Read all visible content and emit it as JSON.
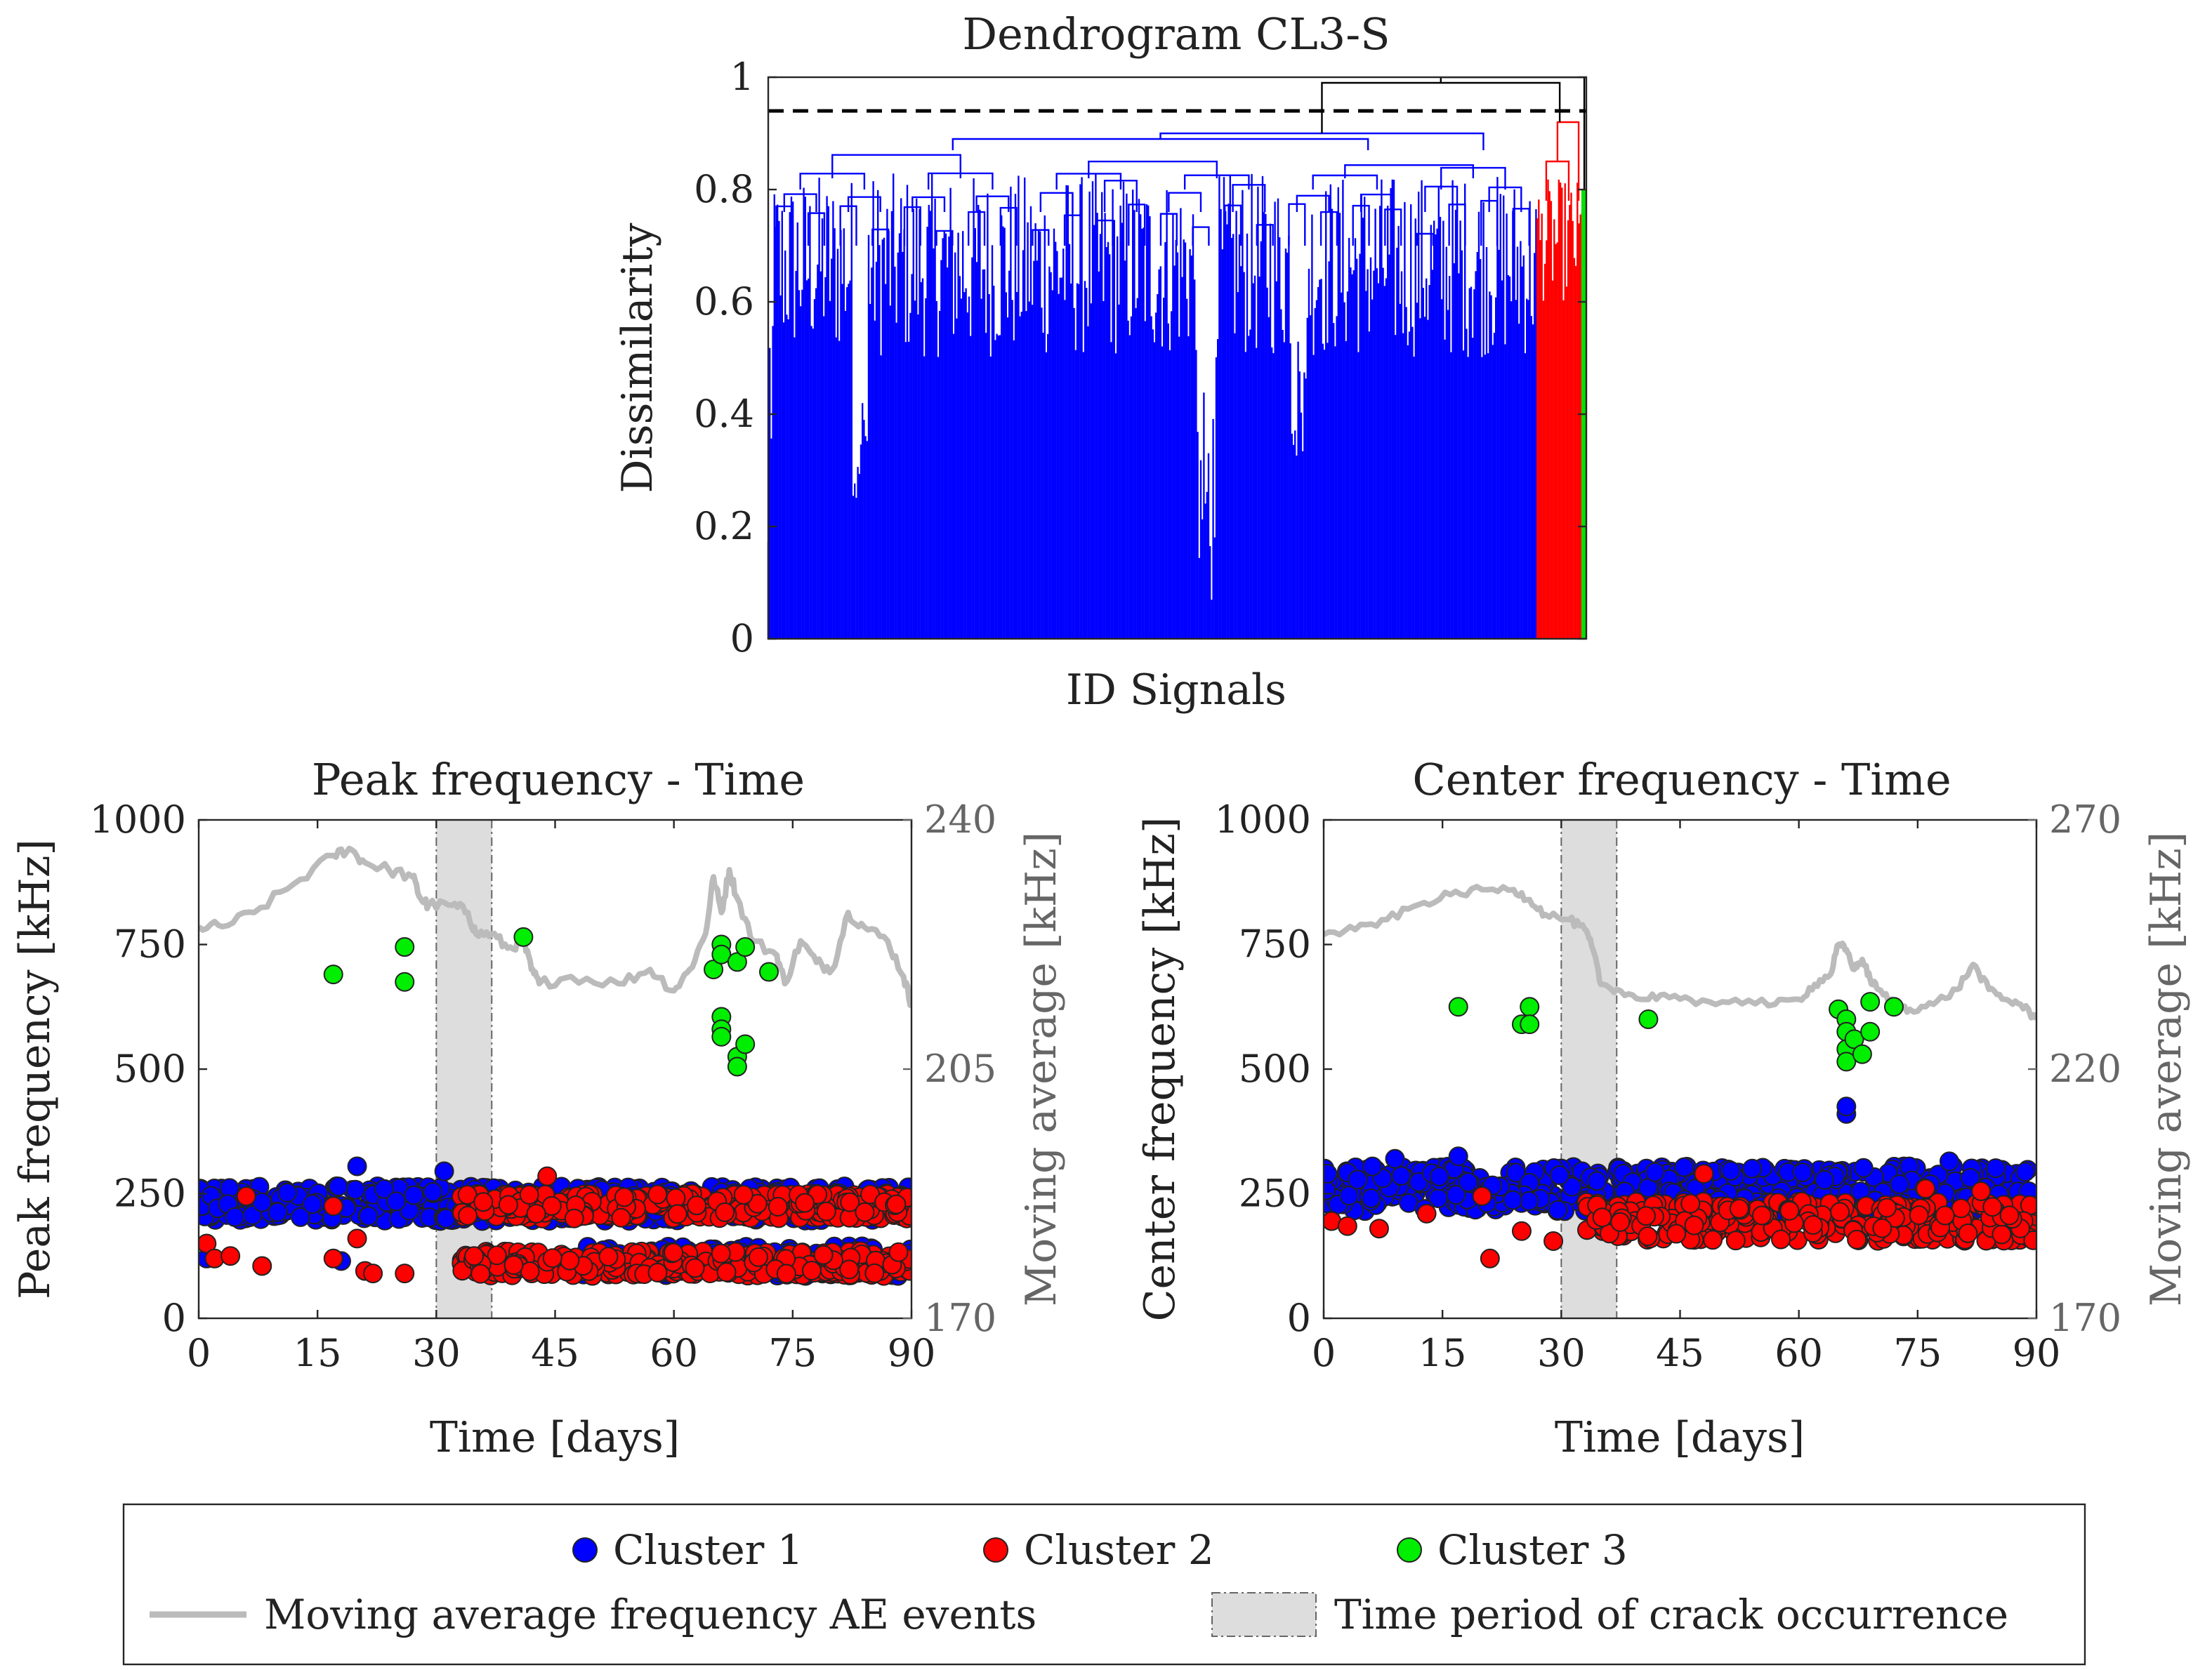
{
  "chart_data": [
    {
      "type": "dendrogram",
      "title": "Dendrogram CL3-S",
      "xlabel": "ID Signals",
      "ylabel": "Dissimilarity",
      "ylim": [
        0,
        1
      ],
      "yticks": [
        "0",
        "0.2",
        "0.4",
        "0.6",
        "0.8",
        "1"
      ],
      "cut_threshold": 0.94,
      "clusters": [
        {
          "name": "Cluster 1",
          "color": "#0000ff",
          "share_of_signals": 0.94,
          "top_merge": 0.9,
          "max_leaf_height": 0.85
        },
        {
          "name": "Cluster 2",
          "color": "#ff0000",
          "share_of_signals": 0.055,
          "top_merge": 0.92,
          "max_leaf_height": 0.85
        },
        {
          "name": "Cluster 3",
          "color": "#00e000",
          "share_of_signals": 0.005,
          "top_merge": 0.8,
          "max_leaf_height": 0.8
        }
      ],
      "final_merges": [
        0.99,
        1.0
      ]
    },
    {
      "type": "scatter",
      "title": "Peak frequency - Time",
      "xlabel": "Time [days]",
      "ylabel": "Peak frequency [kHz]",
      "y2label": "Moving average [kHz]",
      "xlim": [
        0,
        90
      ],
      "ylim": [
        0,
        1000
      ],
      "y2lim": [
        170,
        240
      ],
      "xticks": [
        "0",
        "15",
        "30",
        "45",
        "60",
        "75",
        "90"
      ],
      "yticks": [
        "0",
        "250",
        "500",
        "750",
        "1000"
      ],
      "y2ticks": [
        "170",
        "205",
        "240"
      ],
      "crack_period": [
        30,
        37
      ],
      "series": [
        {
          "name": "Cluster 1",
          "color": "#0000ff",
          "bands": [
            {
              "x": [
                0,
                90
              ],
              "y": [
                195,
                265
              ]
            }
          ],
          "outliers": [
            [
              20,
              305
            ],
            [
              31,
              295
            ],
            [
              1,
              120
            ],
            [
              18,
              115
            ],
            [
              55,
              100
            ]
          ]
        },
        {
          "name": "Cluster 2",
          "color": "#ff0000",
          "bands": [
            {
              "x": [
                33,
                90
              ],
              "y": [
                200,
                250
              ]
            },
            {
              "x": [
                33,
                90
              ],
              "y": [
                85,
                135
              ]
            }
          ],
          "outliers": [
            [
              1,
              150
            ],
            [
              2,
              120
            ],
            [
              4,
              125
            ],
            [
              8,
              105
            ],
            [
              17,
              120
            ],
            [
              21,
              95
            ],
            [
              22,
              90
            ],
            [
              26,
              90
            ],
            [
              17,
              225
            ],
            [
              20,
              160
            ],
            [
              44,
              285
            ],
            [
              6,
              245
            ]
          ]
        },
        {
          "name": "Cluster 3",
          "color": "#00ee00",
          "points": [
            [
              17,
              690
            ],
            [
              26,
              745
            ],
            [
              26,
              675
            ],
            [
              41,
              765
            ],
            [
              65,
              700
            ],
            [
              66,
              750
            ],
            [
              66,
              730
            ],
            [
              68,
              715
            ],
            [
              69,
              745
            ],
            [
              72,
              695
            ],
            [
              66,
              605
            ],
            [
              66,
              580
            ],
            [
              66,
              565
            ],
            [
              68,
              525
            ],
            [
              69,
              550
            ],
            [
              68,
              505
            ]
          ]
        },
        {
          "name": "Moving average frequency AE events",
          "color": "#bbbbbb",
          "axis": "right",
          "points": [
            [
              0,
              225
            ],
            [
              3,
              225
            ],
            [
              7,
              227
            ],
            [
              12,
              231
            ],
            [
              17,
              235
            ],
            [
              19,
              236
            ],
            [
              21,
              234
            ],
            [
              24,
              233
            ],
            [
              27,
              232
            ],
            [
              28,
              229
            ],
            [
              29,
              228
            ],
            [
              32,
              228
            ],
            [
              34,
              227
            ],
            [
              35,
              224
            ],
            [
              37,
              224
            ],
            [
              39,
              222
            ],
            [
              41,
              223
            ],
            [
              42,
              219
            ],
            [
              43,
              217
            ],
            [
              47,
              218
            ],
            [
              53,
              217
            ],
            [
              57,
              219
            ],
            [
              60,
              216
            ],
            [
              62,
              219
            ],
            [
              64,
              224
            ],
            [
              65,
              232
            ],
            [
              66,
              227
            ],
            [
              67,
              233
            ],
            [
              68,
              229
            ],
            [
              70,
              223
            ],
            [
              73,
              221
            ],
            [
              74,
              217
            ],
            [
              76,
              223
            ],
            [
              78,
              220
            ],
            [
              80,
              219
            ],
            [
              82,
              227
            ],
            [
              84,
              225
            ],
            [
              87,
              223
            ],
            [
              89,
              218
            ],
            [
              90,
              214
            ]
          ]
        }
      ]
    },
    {
      "type": "scatter",
      "title": "Center frequency - Time",
      "xlabel": "Time [days]",
      "ylabel": "Center frequency [kHz]",
      "y2label": "Moving average [kHz]",
      "xlim": [
        0,
        90
      ],
      "ylim": [
        0,
        1000
      ],
      "y2lim": [
        170,
        270
      ],
      "xticks": [
        "0",
        "15",
        "30",
        "45",
        "60",
        "75",
        "90"
      ],
      "yticks": [
        "0",
        "250",
        "500",
        "750",
        "1000"
      ],
      "y2ticks": [
        "170",
        "220",
        "270"
      ],
      "crack_period": [
        30,
        37
      ],
      "series": [
        {
          "name": "Cluster 1",
          "color": "#0000ff",
          "bands": [
            {
              "x": [
                0,
                90
              ],
              "y": [
                215,
                305
              ]
            }
          ],
          "outliers": [
            [
              66,
              410
            ],
            [
              66,
              425
            ],
            [
              79,
              315
            ],
            [
              9,
              320
            ],
            [
              17,
              325
            ]
          ]
        },
        {
          "name": "Cluster 2",
          "color": "#ff0000",
          "bands": [
            {
              "x": [
                33,
                90
              ],
              "y": [
                155,
                235
              ]
            }
          ],
          "outliers": [
            [
              1,
              195
            ],
            [
              3,
              185
            ],
            [
              7,
              180
            ],
            [
              13,
              210
            ],
            [
              20,
              245
            ],
            [
              21,
              120
            ],
            [
              25,
              175
            ],
            [
              29,
              155
            ],
            [
              48,
              290
            ],
            [
              76,
              260
            ],
            [
              83,
              255
            ]
          ]
        },
        {
          "name": "Cluster 3",
          "color": "#00ee00",
          "points": [
            [
              17,
              625
            ],
            [
              25,
              590
            ],
            [
              26,
              625
            ],
            [
              26,
              590
            ],
            [
              41,
              600
            ],
            [
              65,
              620
            ],
            [
              66,
              600
            ],
            [
              66,
              575
            ],
            [
              66,
              540
            ],
            [
              66,
              515
            ],
            [
              67,
              560
            ],
            [
              68,
              530
            ],
            [
              69,
              635
            ],
            [
              69,
              575
            ],
            [
              72,
              625
            ]
          ]
        },
        {
          "name": "Moving average frequency AE events",
          "color": "#bbbbbb",
          "axis": "right",
          "points": [
            [
              0,
              247
            ],
            [
              4,
              248
            ],
            [
              8,
              250
            ],
            [
              12,
              253
            ],
            [
              16,
              255
            ],
            [
              20,
              256
            ],
            [
              24,
              256
            ],
            [
              26,
              254
            ],
            [
              28,
              251
            ],
            [
              31,
              250
            ],
            [
              33,
              248
            ],
            [
              34,
              244
            ],
            [
              35,
              237
            ],
            [
              37,
              236
            ],
            [
              40,
              234
            ],
            [
              43,
              235
            ],
            [
              47,
              233
            ],
            [
              52,
              234
            ],
            [
              57,
              233
            ],
            [
              60,
              234
            ],
            [
              62,
              237
            ],
            [
              64,
              239
            ],
            [
              65,
              245
            ],
            [
              66,
              244
            ],
            [
              67,
              240
            ],
            [
              68,
              242
            ],
            [
              69,
              238
            ],
            [
              70,
              236
            ],
            [
              72,
              233
            ],
            [
              74,
              232
            ],
            [
              77,
              233
            ],
            [
              80,
              236
            ],
            [
              82,
              241
            ],
            [
              84,
              236
            ],
            [
              86,
              234
            ],
            [
              88,
              233
            ],
            [
              90,
              230
            ]
          ]
        }
      ]
    }
  ],
  "legend": {
    "entries": [
      {
        "label": "Cluster 1",
        "color": "#0000ff",
        "kind": "marker"
      },
      {
        "label": "Cluster 2",
        "color": "#ff0000",
        "kind": "marker"
      },
      {
        "label": "Cluster 3",
        "color": "#00ee00",
        "kind": "marker"
      },
      {
        "label": "Moving average frequency AE events",
        "color": "#bbbbbb",
        "kind": "line"
      },
      {
        "label": "Time period of crack occurrence",
        "color": "#dddddd",
        "kind": "patch"
      }
    ]
  }
}
